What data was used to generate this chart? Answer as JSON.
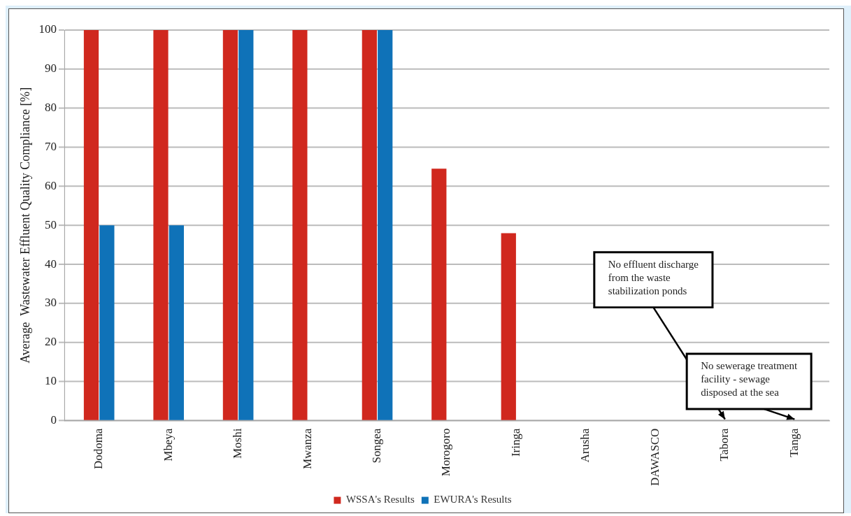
{
  "chart_data": {
    "type": "bar",
    "ylabel": "Average  Wastewater Effluent Quality Compliance [%]",
    "categories": [
      "Dodoma",
      "Mbeya",
      "Moshi",
      "Mwanza",
      "Songea",
      "Morogoro",
      "Iringa",
      "Arusha",
      "DAWASCO",
      "Tabora",
      "Tanga"
    ],
    "series": [
      {
        "name": "WSSA's Results",
        "color": "#d0281e",
        "values": [
          100,
          100,
          100,
          100,
          100,
          64.5,
          48,
          null,
          null,
          null,
          null
        ]
      },
      {
        "name": "EWURA's Results",
        "color": "#0f72b8",
        "values": [
          50,
          50,
          100,
          null,
          100,
          null,
          null,
          null,
          null,
          null,
          null
        ]
      }
    ],
    "ylim": [
      0,
      100
    ],
    "yticks": [
      0,
      10,
      20,
      30,
      40,
      50,
      60,
      70,
      80,
      90,
      100
    ],
    "grid": "y",
    "legend": "bottom",
    "annotations": [
      "No effluent discharge\nfrom the waste\nstabilization ponds",
      "No sewerage treatment\nfacility - sewage\ndisposed at the sea"
    ]
  }
}
